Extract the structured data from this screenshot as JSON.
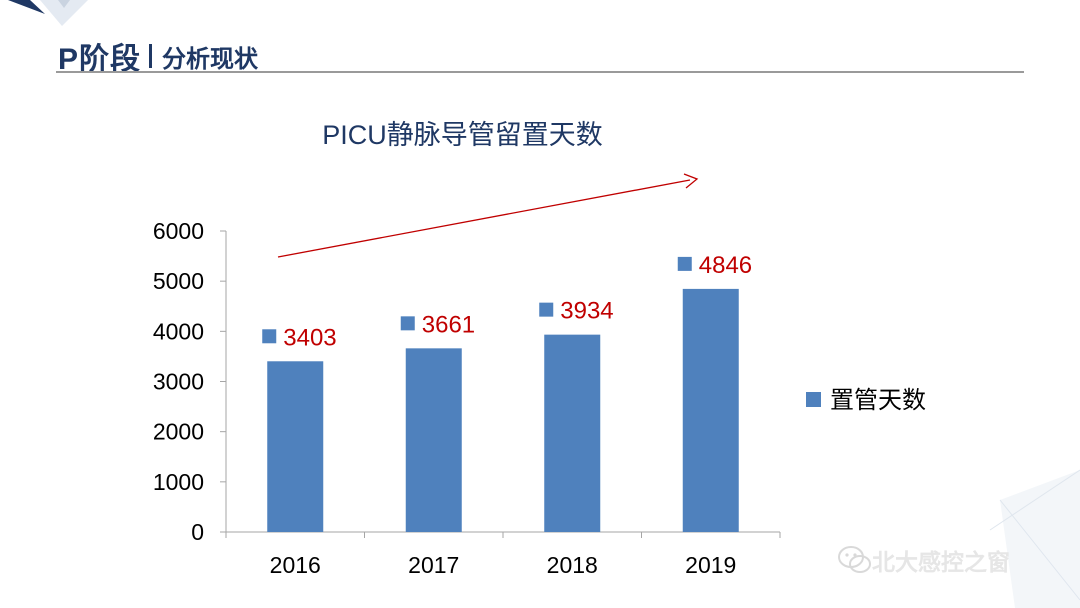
{
  "header": {
    "title_main": "P阶段",
    "title_sub": "分析现状"
  },
  "watermark": {
    "text": "北大感控之窗",
    "icon": "wechat-icon"
  },
  "colors": {
    "bar": "#4f81bd",
    "data_label": "#c00000",
    "trend_arrow": "#c00000",
    "title": "#1f3864"
  },
  "chart_data": {
    "type": "bar",
    "title": "PICU静脉导管留置天数",
    "categories": [
      "2016",
      "2017",
      "2018",
      "2019"
    ],
    "series": [
      {
        "name": "置管天数",
        "values": [
          3403,
          3661,
          3934,
          4846
        ]
      }
    ],
    "ylim": [
      0,
      6000
    ],
    "yticks": [
      0,
      1000,
      2000,
      3000,
      4000,
      5000,
      6000
    ],
    "xlabel": "",
    "ylabel": "",
    "grid": false,
    "legend_position": "right",
    "data_labels": true,
    "annotation": "trend-arrow-up"
  }
}
